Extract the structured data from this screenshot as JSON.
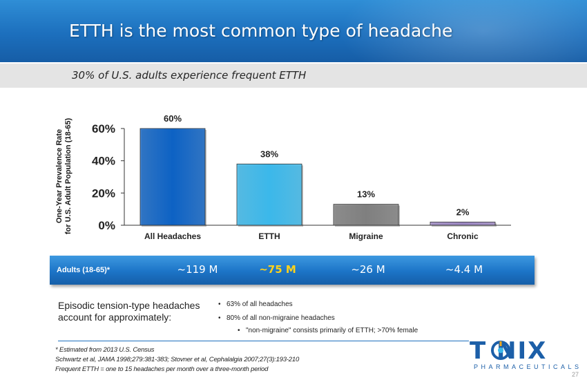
{
  "header": {
    "title": "ETTH is the most common type of headache",
    "subtitle": "30% of U.S. adults experience frequent ETTH"
  },
  "chart_data": {
    "type": "bar",
    "categories": [
      "All Headaches",
      "ETTH",
      "Migraine",
      "Chronic"
    ],
    "values": [
      60,
      38,
      13,
      2
    ],
    "value_labels": [
      "60%",
      "38%",
      "13%",
      "2%"
    ],
    "bar_colors": [
      "#0d62c4",
      "#3bb8ea",
      "#7f7f7f",
      "#9b86c2"
    ],
    "ylabel_lines": [
      "One-Year Prevalence Rate",
      "for U.S. Adult Population (18-65)"
    ],
    "yticks": [
      0,
      20,
      40,
      60
    ],
    "ytick_labels": [
      "0%",
      "20%",
      "40%",
      "60%"
    ],
    "ylim": [
      0,
      60
    ],
    "grid": false,
    "legend": "none"
  },
  "population_band": {
    "label": "Adults (18-65)*",
    "values": [
      "~119 M",
      "~75 M",
      "~26 M",
      "~4.4 M"
    ],
    "highlight_index": 1,
    "highlight_color": "#ffd21a"
  },
  "episodic": {
    "text_line1": "Episodic tension-type headaches",
    "text_line2": "account for approximately:",
    "bullets": [
      "63% of all headaches",
      "80% of all non-migraine headaches"
    ],
    "sub_bullet": "\"non-migraine\" consists primarily of ETTH; >70% female"
  },
  "footnotes": [
    "* Estimated from 2013 U.S. Census",
    "Schwartz et al, JAMA 1998;279:381-383; Stovner et al, Cephalalgia 2007;27(3):193-210",
    "Frequent ETTH = one to 15 headaches per month over a three-month period"
  ],
  "logo": {
    "word": "T NIX",
    "sub": "PHARMACEUTICALS",
    "icon": "tonix-o-icon"
  },
  "page_number": "27"
}
